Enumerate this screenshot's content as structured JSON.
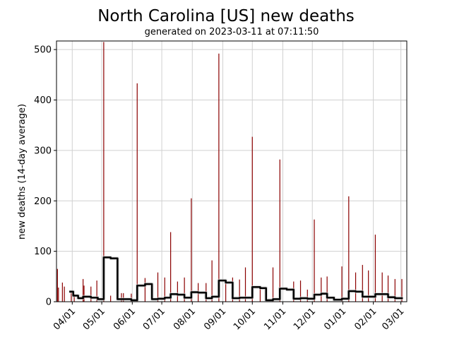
{
  "chart_data": {
    "type": "bar",
    "title": "North Carolina [US] new deaths",
    "subtitle": "generated on 2023-03-11 at 07:11:50",
    "xlabel": "",
    "ylabel": "new deaths (14-day average)",
    "xlim": [
      "2022-03-16",
      "2023-03-07"
    ],
    "ylim": [
      0,
      517
    ],
    "yticks": [
      0,
      100,
      200,
      300,
      400,
      500
    ],
    "xticks": [
      {
        "date": "2022-04-01",
        "label": "04/01"
      },
      {
        "date": "2022-05-01",
        "label": "05/01"
      },
      {
        "date": "2022-06-01",
        "label": "06/01"
      },
      {
        "date": "2022-07-01",
        "label": "07/01"
      },
      {
        "date": "2022-08-01",
        "label": "08/01"
      },
      {
        "date": "2022-09-01",
        "label": "09/01"
      },
      {
        "date": "2022-10-01",
        "label": "10/01"
      },
      {
        "date": "2022-11-01",
        "label": "11/01"
      },
      {
        "date": "2022-12-01",
        "label": "12/01"
      },
      {
        "date": "2023-01-01",
        "label": "01/01"
      },
      {
        "date": "2023-02-01",
        "label": "02/01"
      },
      {
        "date": "2023-03-01",
        "label": "03/01"
      }
    ],
    "grid": true,
    "bar_color": "#8b0000",
    "line_color": "#000000",
    "daily": [
      [
        "2022-03-17",
        65
      ],
      [
        "2022-03-18",
        28
      ],
      [
        "2022-03-22",
        38
      ],
      [
        "2022-03-24",
        30
      ],
      [
        "2022-03-31",
        18
      ],
      [
        "2022-04-03",
        15
      ],
      [
        "2022-04-12",
        45
      ],
      [
        "2022-04-13",
        32
      ],
      [
        "2022-04-20",
        30
      ],
      [
        "2022-04-26",
        42
      ],
      [
        "2022-05-03",
        515
      ],
      [
        "2022-05-10",
        12
      ],
      [
        "2022-05-21",
        17
      ],
      [
        "2022-05-23",
        17
      ],
      [
        "2022-05-31",
        16
      ],
      [
        "2022-06-06",
        433
      ],
      [
        "2022-06-14",
        47
      ],
      [
        "2022-06-27",
        58
      ],
      [
        "2022-07-04",
        48
      ],
      [
        "2022-07-10",
        138
      ],
      [
        "2022-07-17",
        40
      ],
      [
        "2022-07-24",
        48
      ],
      [
        "2022-07-31",
        205
      ],
      [
        "2022-08-07",
        37
      ],
      [
        "2022-08-15",
        37
      ],
      [
        "2022-08-21",
        82
      ],
      [
        "2022-08-28",
        492
      ],
      [
        "2022-09-04",
        42
      ],
      [
        "2022-09-11",
        48
      ],
      [
        "2022-09-18",
        44
      ],
      [
        "2022-09-24",
        68
      ],
      [
        "2022-10-01",
        327
      ],
      [
        "2022-10-09",
        30
      ],
      [
        "2022-10-22",
        68
      ],
      [
        "2022-10-29",
        282
      ],
      [
        "2022-11-12",
        40
      ],
      [
        "2022-11-19",
        42
      ],
      [
        "2022-11-26",
        24
      ],
      [
        "2022-12-03",
        163
      ],
      [
        "2022-12-10",
        48
      ],
      [
        "2022-12-16",
        50
      ],
      [
        "2022-12-31",
        70
      ],
      [
        "2023-01-07",
        209
      ],
      [
        "2023-01-14",
        58
      ],
      [
        "2023-01-21",
        73
      ],
      [
        "2023-01-27",
        62
      ],
      [
        "2023-02-03",
        133
      ],
      [
        "2023-02-10",
        58
      ],
      [
        "2023-02-16",
        52
      ],
      [
        "2023-02-23",
        45
      ],
      [
        "2023-03-02",
        45
      ]
    ],
    "average": [
      [
        "2022-03-29",
        20
      ],
      [
        "2022-04-02",
        12
      ],
      [
        "2022-04-07",
        7
      ],
      [
        "2022-04-12",
        10
      ],
      [
        "2022-04-20",
        8
      ],
      [
        "2022-04-27",
        5
      ],
      [
        "2022-05-03",
        88
      ],
      [
        "2022-05-10",
        86
      ],
      [
        "2022-05-17",
        5
      ],
      [
        "2022-05-31",
        3
      ],
      [
        "2022-06-06",
        32
      ],
      [
        "2022-06-14",
        35
      ],
      [
        "2022-06-21",
        5
      ],
      [
        "2022-06-27",
        6
      ],
      [
        "2022-07-04",
        8
      ],
      [
        "2022-07-10",
        15
      ],
      [
        "2022-07-17",
        14
      ],
      [
        "2022-07-24",
        8
      ],
      [
        "2022-07-31",
        19
      ],
      [
        "2022-08-07",
        18
      ],
      [
        "2022-08-15",
        7
      ],
      [
        "2022-08-21",
        10
      ],
      [
        "2022-08-28",
        42
      ],
      [
        "2022-09-04",
        38
      ],
      [
        "2022-09-11",
        7
      ],
      [
        "2022-09-18",
        8
      ],
      [
        "2022-09-24",
        8
      ],
      [
        "2022-10-01",
        29
      ],
      [
        "2022-10-09",
        27
      ],
      [
        "2022-10-15",
        3
      ],
      [
        "2022-10-22",
        5
      ],
      [
        "2022-10-29",
        26
      ],
      [
        "2022-11-05",
        24
      ],
      [
        "2022-11-12",
        6
      ],
      [
        "2022-11-19",
        7
      ],
      [
        "2022-11-26",
        6
      ],
      [
        "2022-12-03",
        14
      ],
      [
        "2022-12-10",
        16
      ],
      [
        "2022-12-16",
        8
      ],
      [
        "2022-12-23",
        4
      ],
      [
        "2022-12-31",
        6
      ],
      [
        "2023-01-07",
        21
      ],
      [
        "2023-01-14",
        20
      ],
      [
        "2023-01-21",
        10
      ],
      [
        "2023-02-03",
        15
      ],
      [
        "2023-02-16",
        9
      ],
      [
        "2023-02-23",
        7
      ],
      [
        "2023-03-03",
        7
      ]
    ]
  }
}
